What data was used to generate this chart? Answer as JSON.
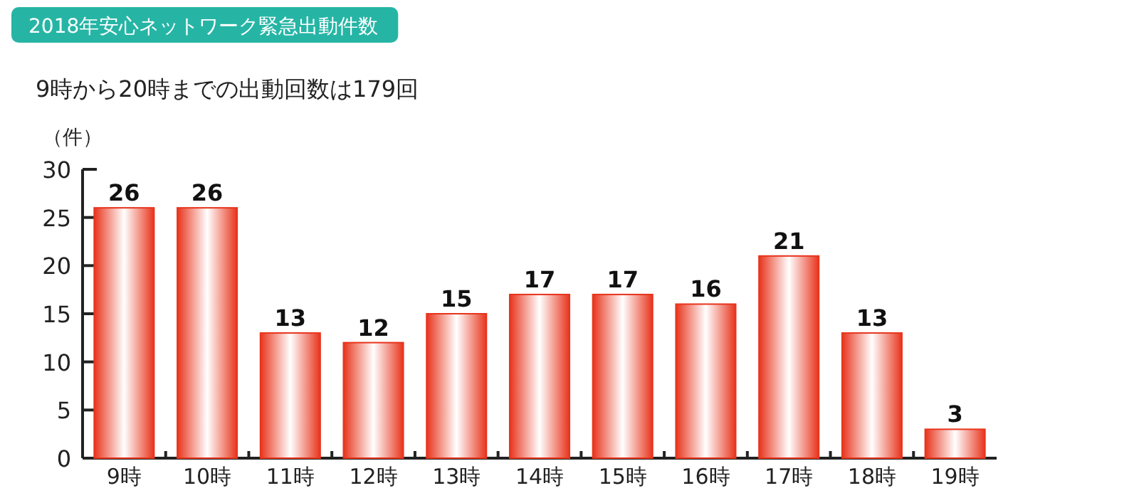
{
  "chart_data": {
    "type": "bar",
    "title": "2018年安心ネットワーク緊急出動件数",
    "subtitle": "9時から20時までの出動回数は179回",
    "ylabel": "（件）",
    "categories": [
      "9時",
      "10時",
      "11時",
      "12時",
      "13時",
      "14時",
      "15時",
      "16時",
      "17時",
      "18時",
      "19時"
    ],
    "values": [
      26,
      26,
      13,
      12,
      15,
      17,
      17,
      16,
      21,
      13,
      3
    ],
    "color": "#e8341c",
    "ylim": [
      0,
      30
    ],
    "yticks": [
      0,
      5,
      10,
      15,
      20,
      25,
      30
    ],
    "data_labels": true
  }
}
